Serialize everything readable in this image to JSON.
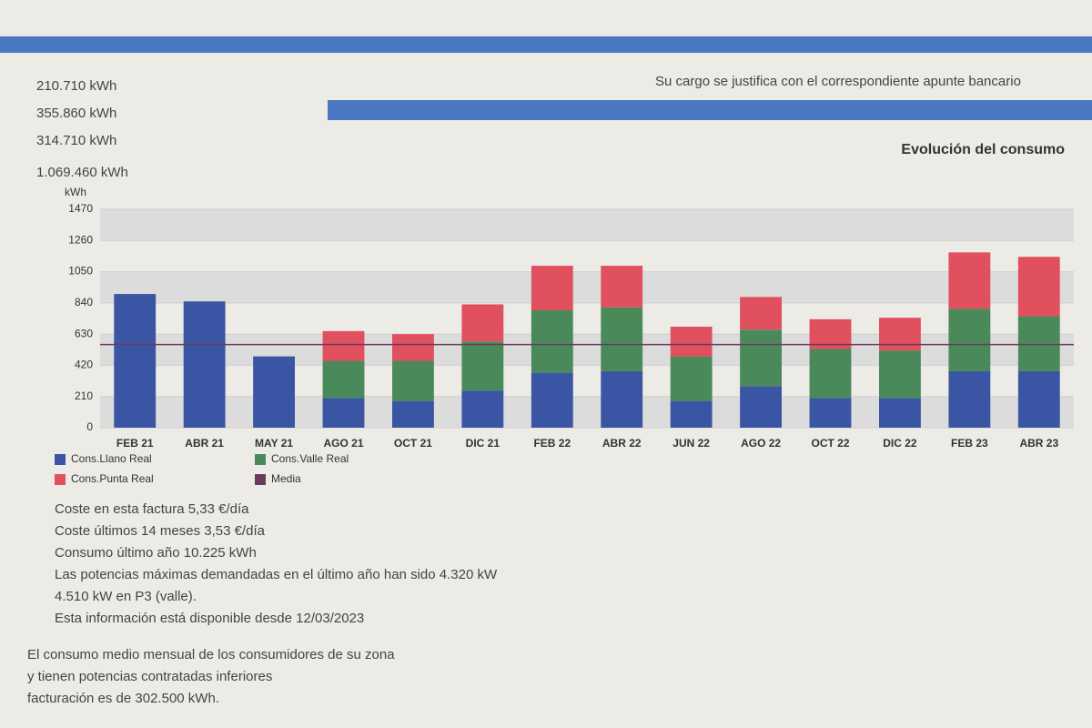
{
  "document": {
    "bank_note": "Su cargo se justifica con el correspondiente apunte bancario",
    "summary_values": [
      "210.710 kWh",
      "355.860 kWh",
      "314.710 kWh",
      "1.069.460 kWh"
    ],
    "notes": [
      "Coste en esta factura 5,33 €/día",
      "Coste últimos 14 meses 3,53 €/día",
      "Consumo último año 10.225 kWh",
      "Las potencias máximas demandadas en el último año han sido 4.320 kW",
      "4.510 kW en P3 (valle).",
      "Esta información está disponible desde 12/03/2023"
    ],
    "footnote": [
      "El consumo medio mensual de los consumidores de su zona",
      "y tienen potencias contratadas inferiores",
      "facturación es de 302.500 kWh."
    ]
  },
  "chart_data": {
    "type": "stacked-bar",
    "title": "Evolución del consumo",
    "y_label": "kWh",
    "categories": [
      "FEB 21",
      "ABR 21",
      "MAY 21",
      "AGO 21",
      "OCT 21",
      "DIC 21",
      "FEB 22",
      "ABR 22",
      "JUN 22",
      "AGO 22",
      "OCT 22",
      "DIC 22",
      "FEB 23",
      "ABR 23"
    ],
    "series": [
      {
        "name": "Cons.Llano Real",
        "color": "#3a55a4",
        "values": [
          900,
          850,
          480,
          200,
          180,
          250,
          370,
          380,
          180,
          280,
          200,
          200,
          380,
          380
        ]
      },
      {
        "name": "Cons.Valle Real",
        "color": "#4a8a5a",
        "values": [
          0,
          0,
          0,
          250,
          270,
          330,
          420,
          430,
          300,
          380,
          330,
          320,
          420,
          370
        ]
      },
      {
        "name": "Cons.Punta Real",
        "color": "#e0505e",
        "values": [
          0,
          0,
          0,
          200,
          180,
          250,
          300,
          280,
          200,
          220,
          200,
          220,
          380,
          400
        ]
      }
    ],
    "media": {
      "name": "Media",
      "color": "#6b3a5a",
      "value": 560
    },
    "ylim": [
      0,
      1470
    ],
    "yticks": [
      0,
      210,
      420,
      630,
      840,
      1050,
      1260,
      1470
    ],
    "grid": true
  }
}
